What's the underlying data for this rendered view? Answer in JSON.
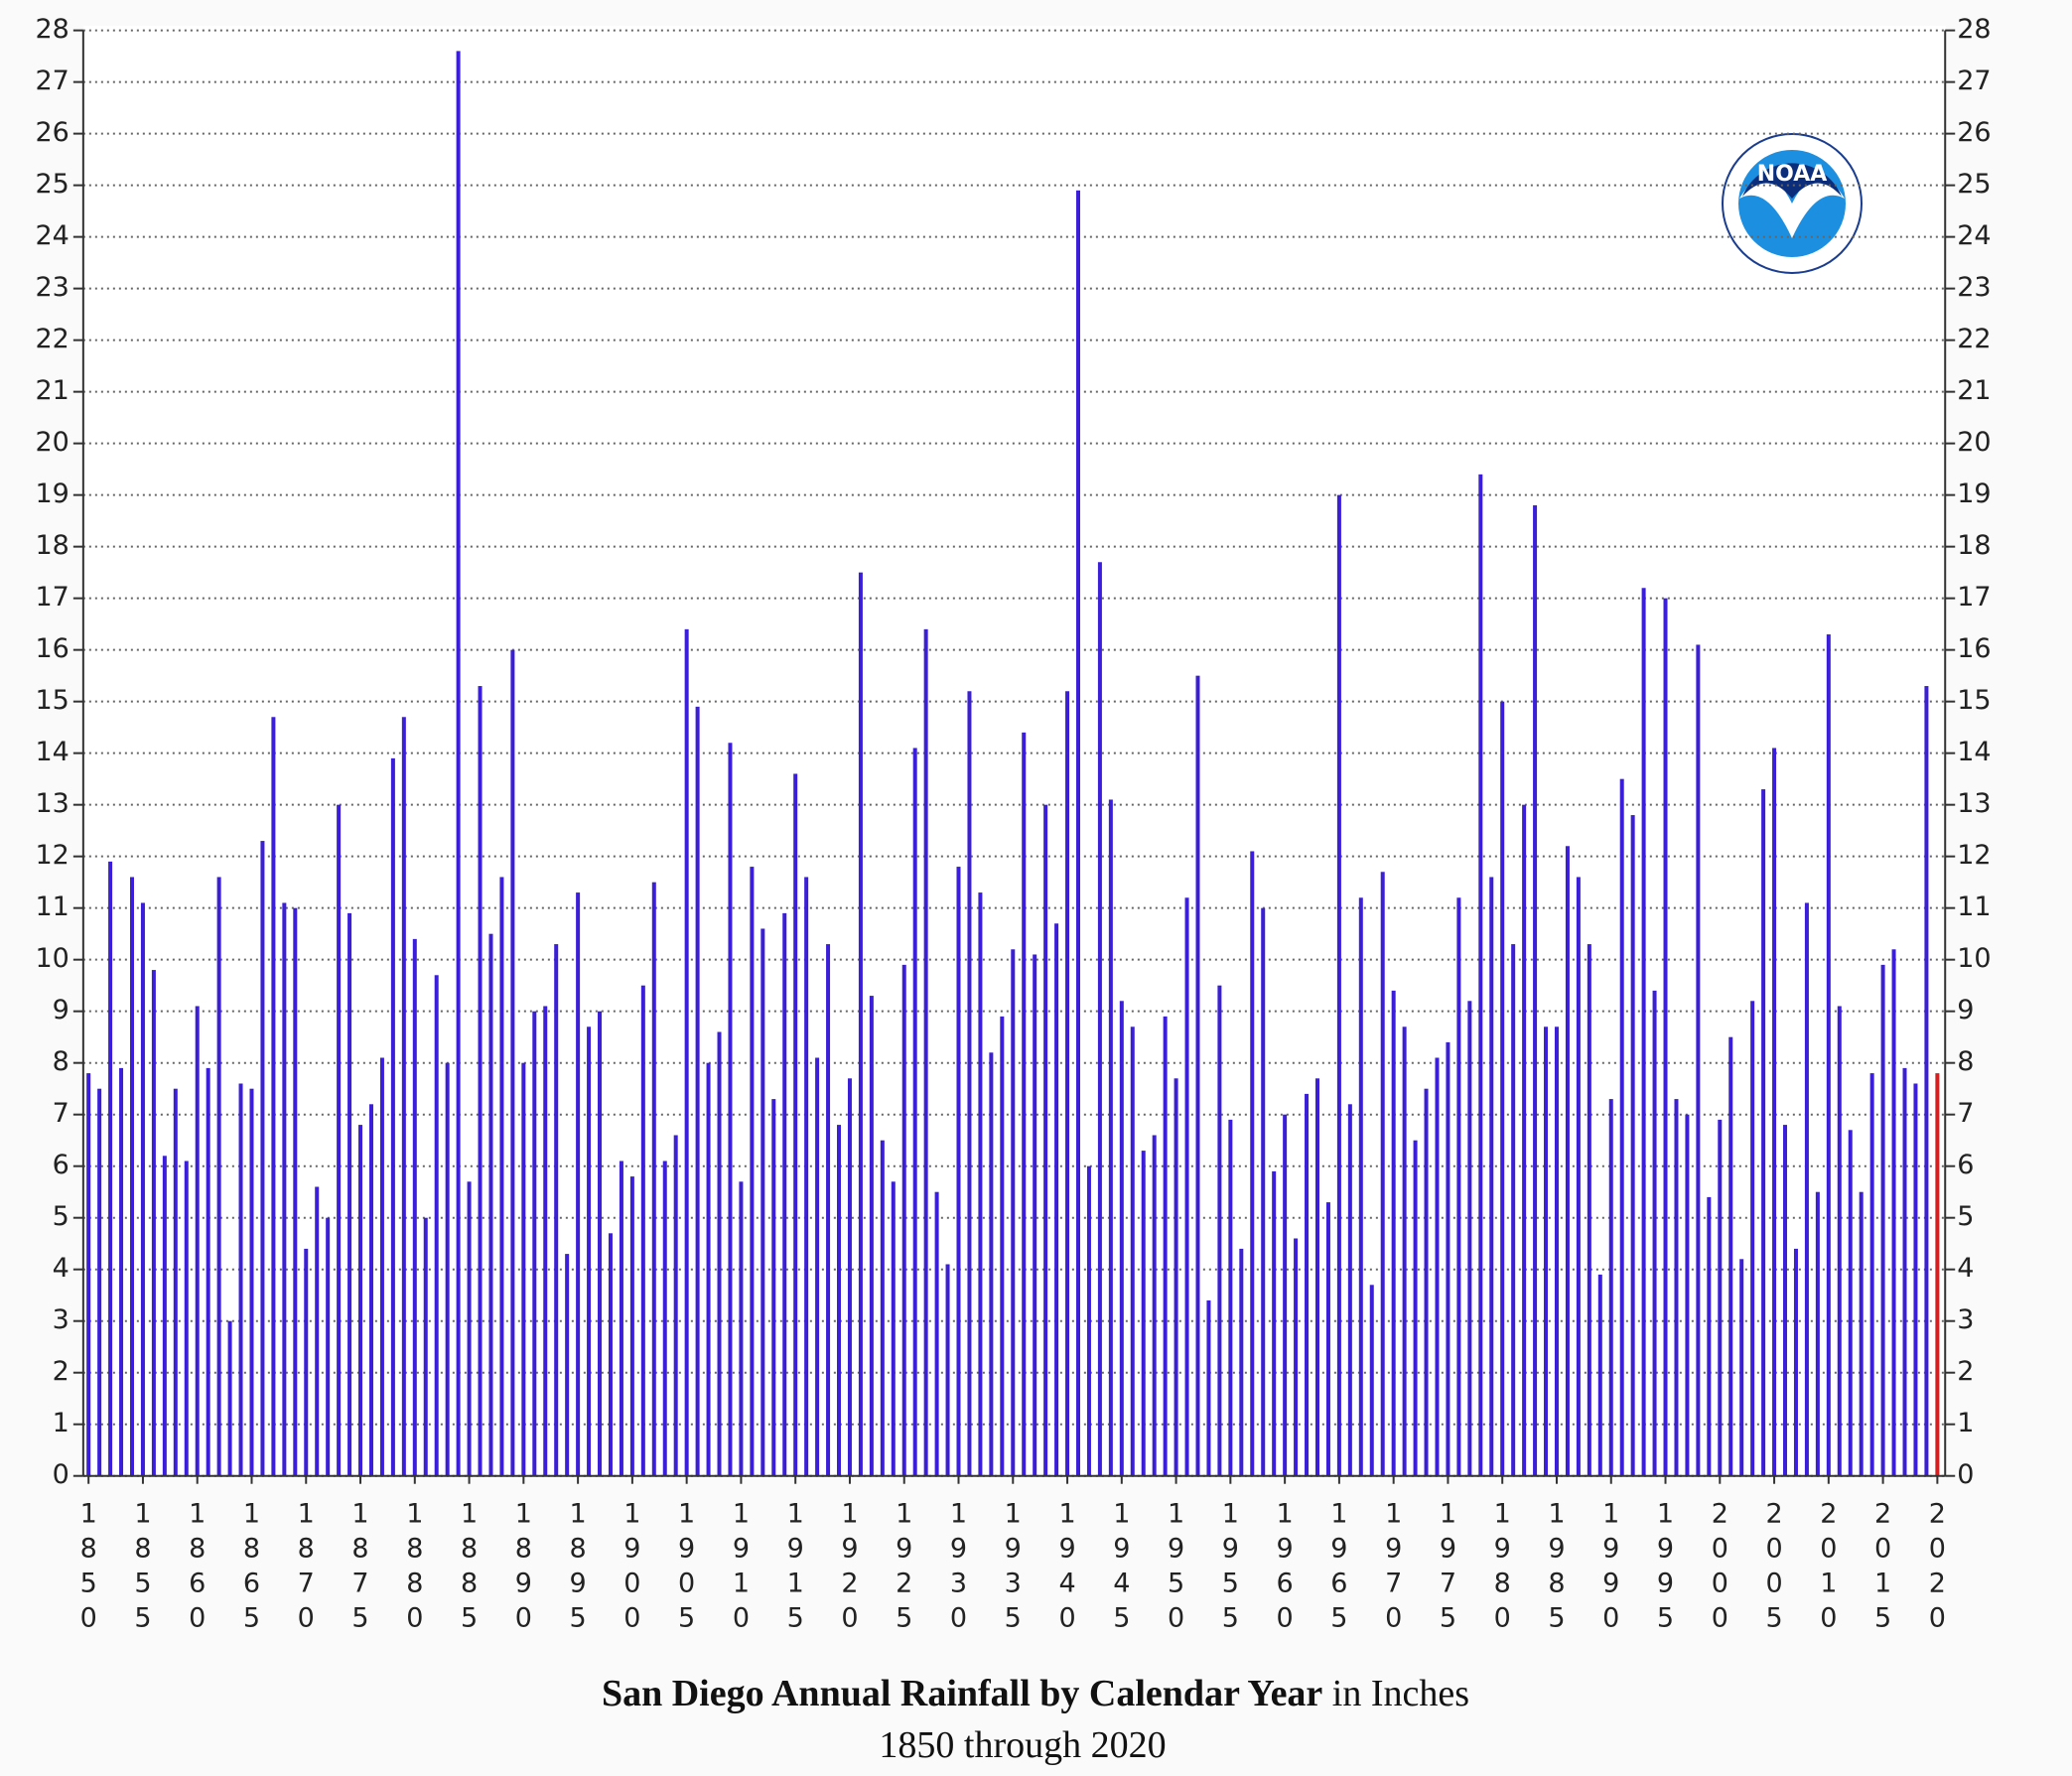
{
  "chart_data": {
    "type": "bar",
    "title": "San Diego Annual Rainfall by Calendar Year",
    "title_suffix": "in Inches",
    "subtitle": "1850 through 2020",
    "logo_text": "NOAA",
    "categories": [
      "1850",
      null,
      null,
      null,
      null,
      "1855",
      null,
      null,
      null,
      null,
      "1860",
      null,
      null,
      null,
      null,
      "1865",
      null,
      null,
      null,
      null,
      "1870",
      null,
      null,
      null,
      null,
      "1875",
      null,
      null,
      null,
      null,
      "1880",
      null,
      null,
      null,
      null,
      "1885",
      null,
      null,
      null,
      null,
      "1890",
      null,
      null,
      null,
      null,
      "1895",
      null,
      null,
      null,
      null,
      "1900",
      null,
      null,
      null,
      null,
      "1905",
      null,
      null,
      null,
      null,
      "1910",
      null,
      null,
      null,
      null,
      "1915",
      null,
      null,
      null,
      null,
      "1920",
      null,
      null,
      null,
      null,
      "1925",
      null,
      null,
      null,
      null,
      "1930",
      null,
      null,
      null,
      null,
      "1935",
      null,
      null,
      null,
      null,
      "1940",
      null,
      null,
      null,
      null,
      "1945",
      null,
      null,
      null,
      null,
      "1950",
      null,
      null,
      null,
      null,
      "1955",
      null,
      null,
      null,
      null,
      "1960",
      null,
      null,
      null,
      null,
      "1965",
      null,
      null,
      null,
      null,
      "1970",
      null,
      null,
      null,
      null,
      "1975",
      null,
      null,
      null,
      null,
      "1980",
      null,
      null,
      null,
      null,
      "1985",
      null,
      null,
      null,
      null,
      "1990",
      null,
      null,
      null,
      null,
      "1995",
      null,
      null,
      null,
      null,
      "2000",
      null,
      null,
      null,
      null,
      "2005",
      null,
      null,
      null,
      null,
      "2010",
      null,
      null,
      null,
      null,
      "2015",
      null,
      null,
      null,
      null,
      "2020"
    ],
    "values": [
      7.8,
      7.5,
      11.9,
      7.9,
      11.6,
      11.1,
      9.8,
      6.2,
      7.5,
      6.1,
      9.1,
      7.9,
      11.6,
      3.0,
      7.6,
      7.5,
      12.3,
      14.7,
      11.1,
      11.0,
      4.4,
      5.6,
      5.0,
      13.0,
      10.9,
      6.8,
      7.2,
      8.1,
      13.9,
      14.7,
      10.4,
      5.0,
      9.7,
      8.0,
      27.6,
      5.7,
      15.3,
      10.5,
      11.6,
      16.0,
      8.0,
      9.0,
      9.1,
      10.3,
      4.3,
      11.3,
      8.7,
      9.0,
      4.7,
      6.1,
      5.8,
      9.5,
      11.5,
      6.1,
      6.6,
      16.4,
      14.9,
      8.0,
      8.6,
      14.2,
      5.7,
      11.8,
      10.6,
      7.3,
      10.9,
      13.6,
      11.6,
      8.1,
      10.3,
      6.8,
      7.7,
      17.5,
      9.3,
      6.5,
      5.7,
      9.9,
      14.1,
      16.4,
      5.5,
      4.1,
      11.8,
      15.2,
      11.3,
      8.2,
      8.9,
      10.2,
      14.4,
      10.1,
      13.0,
      10.7,
      15.2,
      24.9,
      6.0,
      17.7,
      13.1,
      9.2,
      8.7,
      6.3,
      6.6,
      8.9,
      7.7,
      11.2,
      15.5,
      3.4,
      9.5,
      6.9,
      4.4,
      12.1,
      11.0,
      5.9,
      7.0,
      4.6,
      7.4,
      7.7,
      5.3,
      19.0,
      7.2,
      11.2,
      3.7,
      11.7,
      9.4,
      8.7,
      6.5,
      7.5,
      8.1,
      8.4,
      11.2,
      9.2,
      19.4,
      11.6,
      15.0,
      10.3,
      13.0,
      18.8,
      8.7,
      8.7,
      12.2,
      11.6,
      10.3,
      3.9,
      7.3,
      13.5,
      12.8,
      17.2,
      9.4,
      17.0,
      7.3,
      7.0,
      16.1,
      5.4,
      6.9,
      8.5,
      4.2,
      9.2,
      13.3,
      14.1,
      6.8,
      4.4,
      11.1,
      5.5,
      16.3,
      9.1,
      6.7,
      5.5,
      7.8,
      9.9,
      10.2,
      7.9,
      7.6,
      15.3,
      7.8
    ],
    "color": "#3a1ed8",
    "highlight": {
      "category": "2020",
      "color": "#d42020"
    },
    "ylim": [
      0,
      28
    ],
    "yticks": [
      0,
      1,
      2,
      3,
      4,
      5,
      6,
      7,
      8,
      9,
      10,
      11,
      12,
      13,
      14,
      15,
      16,
      17,
      18,
      19,
      20,
      21,
      22,
      23,
      24,
      25,
      26,
      27,
      28
    ],
    "right_axis": true,
    "grid": true
  }
}
